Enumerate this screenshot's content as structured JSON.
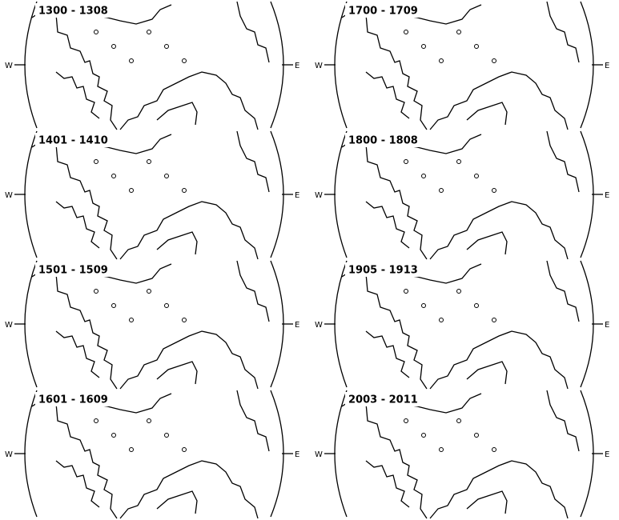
{
  "panels": [
    {
      "label": "1300 - 1308",
      "west": "W",
      "east": "E"
    },
    {
      "label": "1700 - 1709",
      "west": "W",
      "east": "E"
    },
    {
      "label": "1401 - 1410",
      "west": "W",
      "east": "E"
    },
    {
      "label": "1800 - 1808",
      "west": "W",
      "east": "E"
    },
    {
      "label": "1501 - 1509",
      "west": "W",
      "east": "E"
    },
    {
      "label": "1905 - 1913",
      "west": "W",
      "east": "E"
    },
    {
      "label": "1601 - 1609",
      "west": "W",
      "east": "E"
    },
    {
      "label": "2003 - 2011",
      "west": "W",
      "east": "E"
    }
  ]
}
